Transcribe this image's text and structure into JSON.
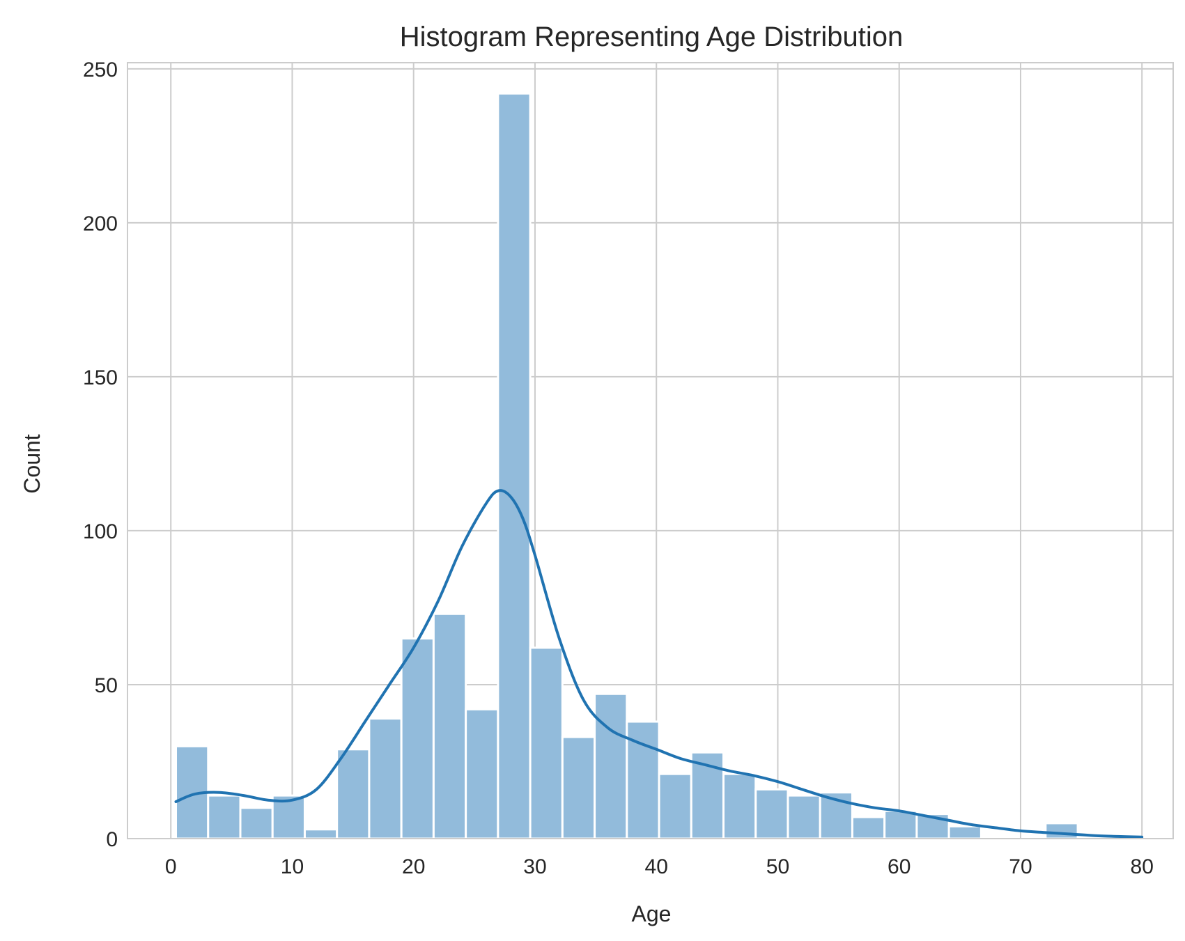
{
  "chart_data": {
    "type": "bar",
    "title": "Histogram Representing Age Distribution",
    "xlabel": "Age",
    "ylabel": "Count",
    "xlim": [
      -3.57,
      82.57
    ],
    "ylim": [
      0,
      252
    ],
    "x_ticks": [
      0,
      10,
      20,
      30,
      40,
      50,
      60,
      70,
      80
    ],
    "x_tick_labels": [
      "0",
      "10",
      "20",
      "30",
      "40",
      "50",
      "60",
      "70",
      "80"
    ],
    "y_ticks": [
      0,
      50,
      100,
      150,
      200,
      250
    ],
    "y_tick_labels": [
      "0",
      "50",
      "100",
      "150",
      "200",
      "250"
    ],
    "grid": true,
    "bin_start": 0.42,
    "bin_width": 2.6533,
    "counts": [
      30,
      14,
      10,
      14,
      3,
      29,
      39,
      65,
      73,
      42,
      242,
      62,
      33,
      47,
      38,
      21,
      28,
      21,
      16,
      14,
      15,
      7,
      9,
      8,
      4,
      0,
      0,
      5,
      0,
      0
    ],
    "kde": {
      "x": [
        0.42,
        2,
        4,
        6,
        8,
        10,
        12,
        14,
        16,
        18,
        20,
        22,
        24,
        26,
        27,
        28,
        29,
        30,
        32,
        34,
        36,
        38,
        40,
        42,
        44,
        46,
        48,
        50,
        52,
        54,
        56,
        58,
        60,
        62,
        64,
        66,
        68,
        70,
        72,
        74,
        76,
        78,
        80
      ],
      "y": [
        12,
        14.5,
        15,
        14,
        12.5,
        12.5,
        16,
        26,
        38,
        50,
        62,
        77,
        95,
        109,
        113,
        111,
        104,
        92,
        65,
        45,
        36,
        32,
        29,
        26,
        24,
        22,
        20.5,
        18.5,
        16,
        13.5,
        11.5,
        10,
        9,
        7.5,
        6,
        4.5,
        3.5,
        2.5,
        2,
        1.5,
        1,
        0.7,
        0.5
      ]
    },
    "colors": {
      "bar_fill": "#92bbdb",
      "bar_edge": "#ffffff",
      "kde_line": "#2073b1",
      "grid": "#cccccc",
      "spine": "#cccccc",
      "text": "#262626"
    }
  }
}
